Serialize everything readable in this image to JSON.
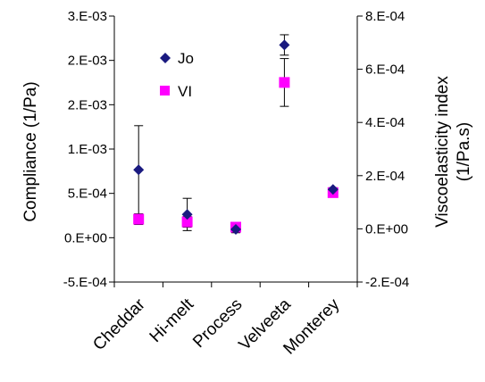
{
  "chart_data": {
    "type": "scatter",
    "categories": [
      "Cheddar",
      "Hi-melt",
      "Process",
      "Velveeta",
      "Monterey"
    ],
    "y_left": {
      "label": "Compliance (1/Pa)",
      "ticks": [
        "3.E-03",
        "2.E-03",
        "2.E-03",
        "1.E-03",
        "5.E-04",
        "0.E+00",
        "-5.E-04"
      ],
      "ylim": [
        -0.0005,
        0.0025
      ]
    },
    "y_right": {
      "label_line1": "Viscoelasticity index",
      "label_line2": "(1/Pa.s)",
      "ticks": [
        "8.E-04",
        "6.E-04",
        "4.E-04",
        "2.E-04",
        "0.E+00",
        "-2.E-04"
      ],
      "ylim": [
        -0.0002,
        0.0008
      ]
    },
    "series": [
      {
        "name": "Jo",
        "axis": "left",
        "marker": "diamond",
        "color": "#1a1a80",
        "values": [
          0.00069,
          0.000165,
          -1e-05,
          0.00216,
          0.00046
        ],
        "error": [
          0.00052,
          0.00019,
          4e-05,
          0.00012,
          2e-05
        ]
      },
      {
        "name": "VI",
        "axis": "right",
        "marker": "square",
        "color": "#ff00ff",
        "values": [
          3.5e-05,
          2.5e-05,
          5e-06,
          0.00055,
          0.000135
        ],
        "error": [
          2e-05,
          2e-05,
          1e-05,
          9e-05,
          1e-05
        ]
      }
    ],
    "legend": "upper-left-inside"
  }
}
